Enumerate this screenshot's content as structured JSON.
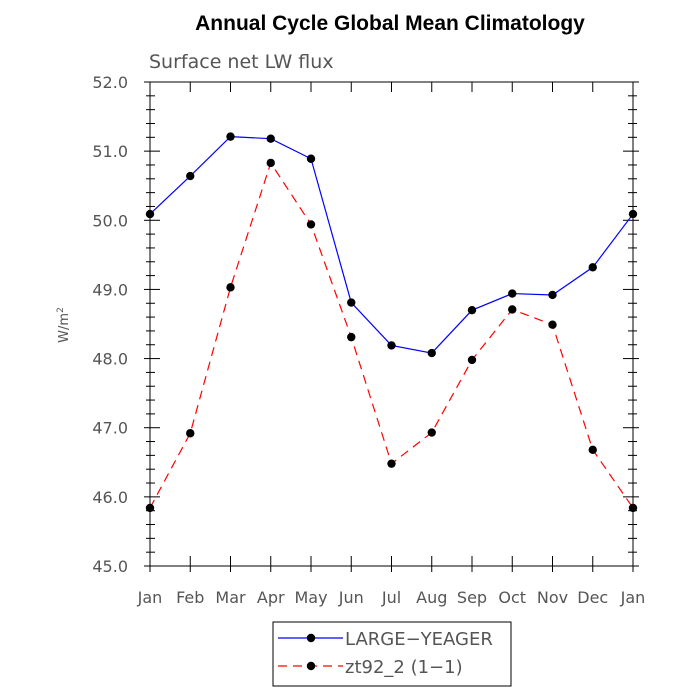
{
  "chart_data": {
    "type": "line",
    "title": "Annual Cycle Global Mean Climatology",
    "subtitle": "Surface net LW flux",
    "ylabel": "W/m",
    "ylabel_sup": "2",
    "xlabel": "",
    "categories": [
      "Jan",
      "Feb",
      "Mar",
      "Apr",
      "May",
      "Jun",
      "Jul",
      "Aug",
      "Sep",
      "Oct",
      "Nov",
      "Dec",
      "Jan"
    ],
    "ylim": [
      45.0,
      52.0
    ],
    "yticks": [
      "45.0",
      "46.0",
      "47.0",
      "48.0",
      "49.0",
      "50.0",
      "51.0",
      "52.0"
    ],
    "grid": false,
    "legend_position": "bottom",
    "series": [
      {
        "name": "LARGE−YEAGER",
        "color": "#0000ff",
        "dash": "solid",
        "values": [
          50.09,
          50.64,
          51.21,
          51.18,
          50.89,
          48.81,
          48.19,
          48.08,
          48.7,
          48.94,
          48.92,
          49.32,
          50.09
        ]
      },
      {
        "name": "zt92_2 (1−1)",
        "color": "#ff0000",
        "dash": "dashed",
        "values": [
          45.84,
          46.92,
          49.03,
          50.83,
          49.94,
          48.31,
          46.48,
          46.93,
          47.98,
          48.71,
          48.49,
          46.68,
          45.84
        ]
      }
    ]
  }
}
